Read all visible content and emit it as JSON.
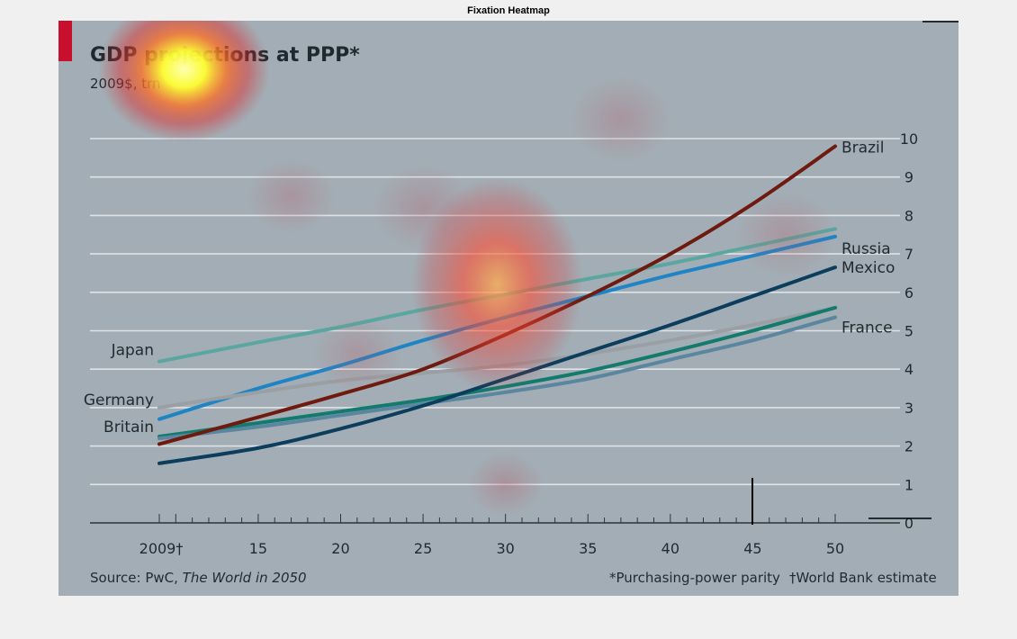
{
  "window": {
    "title": "Fixation Heatmap"
  },
  "colors": {
    "background": "#a3adb5",
    "grid": "#dfe3e6",
    "accent": "#c8102e",
    "text": "#1f2a30"
  },
  "chart_data": {
    "type": "line",
    "title": "GDP projections at PPP*",
    "subtitle": "2009$, trn",
    "xlabel": "",
    "ylabel": "",
    "x_ticks": [
      {
        "value": 2009,
        "label": "2009†"
      },
      {
        "value": 2015,
        "label": "15"
      },
      {
        "value": 2020,
        "label": "20"
      },
      {
        "value": 2025,
        "label": "25"
      },
      {
        "value": 2030,
        "label": "30"
      },
      {
        "value": 2035,
        "label": "35"
      },
      {
        "value": 2040,
        "label": "40"
      },
      {
        "value": 2045,
        "label": "45"
      },
      {
        "value": 2050,
        "label": "50"
      }
    ],
    "y_ticks": [
      0,
      1,
      2,
      3,
      4,
      5,
      6,
      7,
      8,
      9,
      10
    ],
    "xlim": [
      2009,
      2050
    ],
    "ylim": [
      0,
      10
    ],
    "grid": true,
    "series": [
      {
        "name": "Japan",
        "color": "#5aa6a0",
        "label_side": "left",
        "x": [
          2009,
          2015,
          2020,
          2025,
          2030,
          2035,
          2040,
          2045,
          2050
        ],
        "y": [
          4.2,
          4.7,
          5.1,
          5.55,
          5.95,
          6.35,
          6.75,
          7.2,
          7.65
        ]
      },
      {
        "name": "Russia",
        "color": "#1f84c6",
        "label_side": "right",
        "x": [
          2009,
          2015,
          2020,
          2025,
          2030,
          2035,
          2040,
          2045,
          2050
        ],
        "y": [
          2.7,
          3.5,
          4.1,
          4.75,
          5.35,
          5.9,
          6.45,
          6.95,
          7.45
        ]
      },
      {
        "name": "Germany",
        "color": "#9a9fa3",
        "label_side": "left",
        "x": [
          2009,
          2015,
          2020,
          2025,
          2030,
          2035,
          2040,
          2045,
          2050
        ],
        "y": [
          3.0,
          3.4,
          3.7,
          3.9,
          4.1,
          4.4,
          4.75,
          5.15,
          5.6
        ]
      },
      {
        "name": "Britain",
        "color": "#137a6e",
        "label_side": "left",
        "x": [
          2009,
          2015,
          2020,
          2025,
          2030,
          2035,
          2040,
          2045,
          2050
        ],
        "y": [
          2.25,
          2.6,
          2.9,
          3.2,
          3.55,
          3.95,
          4.45,
          5.0,
          5.6
        ]
      },
      {
        "name": "France",
        "color": "#5a86a0",
        "label_side": "right",
        "x": [
          2009,
          2015,
          2020,
          2025,
          2030,
          2035,
          2040,
          2045,
          2050
        ],
        "y": [
          2.2,
          2.5,
          2.8,
          3.1,
          3.4,
          3.75,
          4.25,
          4.75,
          5.35
        ]
      },
      {
        "name": "Mexico",
        "color": "#0b3d5c",
        "label_side": "right",
        "x": [
          2009,
          2015,
          2020,
          2025,
          2030,
          2035,
          2040,
          2045,
          2050
        ],
        "y": [
          1.55,
          1.95,
          2.45,
          3.05,
          3.75,
          4.45,
          5.15,
          5.9,
          6.65
        ]
      },
      {
        "name": "Brazil",
        "color": "#6e1a0e",
        "label_side": "right",
        "x": [
          2009,
          2015,
          2020,
          2025,
          2030,
          2035,
          2040,
          2045,
          2050
        ],
        "y": [
          2.05,
          2.75,
          3.35,
          4.0,
          4.9,
          5.9,
          7.0,
          8.3,
          9.8
        ]
      }
    ],
    "source_prefix": "Source: PwC, ",
    "source_italic": "The World in 2050",
    "footnote_1": "*Purchasing-power parity",
    "footnote_2": "†World Bank estimate",
    "heatmap": [
      {
        "x": 2010.5,
        "y": 11.8,
        "intensity": 1.0,
        "radius": 1.0
      },
      {
        "x": 2029.5,
        "y": 6.2,
        "intensity": 0.75,
        "radius": 1.0
      },
      {
        "x": 2030,
        "y": 1.0,
        "intensity": 0.3,
        "radius": 0.6
      },
      {
        "x": 2025,
        "y": 8.2,
        "intensity": 0.2,
        "radius": 0.8
      },
      {
        "x": 2017,
        "y": 8.5,
        "intensity": 0.2,
        "radius": 0.7
      },
      {
        "x": 2037,
        "y": 10.5,
        "intensity": 0.18,
        "radius": 0.8
      },
      {
        "x": 2047,
        "y": 7.5,
        "intensity": 0.15,
        "radius": 0.8
      },
      {
        "x": 2021,
        "y": 4.4,
        "intensity": 0.15,
        "radius": 0.7
      }
    ]
  }
}
